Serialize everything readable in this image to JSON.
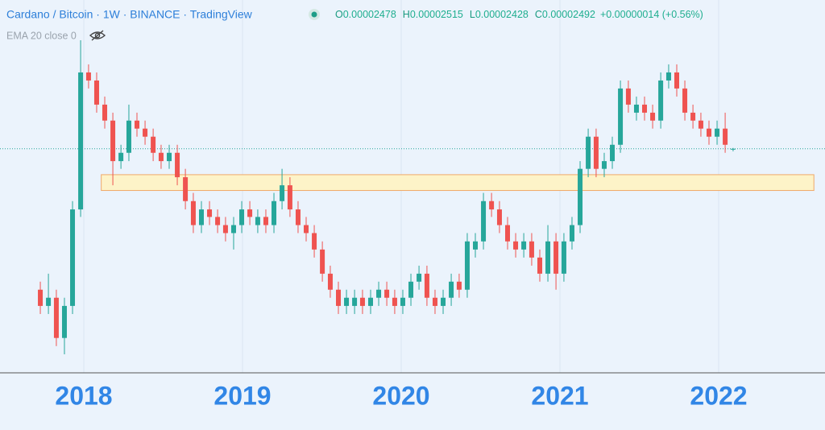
{
  "chart_data": {
    "type": "candlestick",
    "title": "Cardano / Bitcoin · 1W · BINANCE · TradingView",
    "ohlc": [
      {
        "key": "O",
        "value": 2.478e-05
      },
      {
        "key": "H",
        "value": 2.515e-05
      },
      {
        "key": "L",
        "value": 2.428e-05
      },
      {
        "key": "C",
        "value": 2.492e-05
      }
    ],
    "change": "+0.00000014 (+0.56%)",
    "indicator": "EMA 20 close 0",
    "up_color": "#26a69a",
    "down_color": "#ef5350",
    "log_scale": true,
    "grid": "x",
    "xlim": [
      2017.472,
      2022.67
    ],
    "xticks": [
      2018,
      2019,
      2020,
      2021,
      2022
    ],
    "ylim": [
      2.38e-06,
      0.0001186
    ],
    "zone": {
      "x": [
        2018.11,
        2022.6
      ],
      "y": [
        1.9e-05,
        1.61e-05
      ]
    },
    "x": [
      2017.726,
      2017.777,
      2017.827,
      2017.878,
      2017.929,
      2017.98,
      2018.03,
      2018.081,
      2018.132,
      2018.183,
      2018.234,
      2018.284,
      2018.335,
      2018.386,
      2018.437,
      2018.487,
      2018.538,
      2018.589,
      2018.64,
      2018.69,
      2018.741,
      2018.792,
      2018.843,
      2018.893,
      2018.944,
      2018.995,
      2019.046,
      2019.096,
      2019.147,
      2019.198,
      2019.249,
      2019.299,
      2019.35,
      2019.401,
      2019.452,
      2019.503,
      2019.553,
      2019.604,
      2019.655,
      2019.706,
      2019.756,
      2019.807,
      2019.858,
      2019.909,
      2019.959,
      2020.01,
      2020.061,
      2020.112,
      2020.162,
      2020.213,
      2020.264,
      2020.315,
      2020.365,
      2020.416,
      2020.467,
      2020.518,
      2020.569,
      2020.619,
      2020.67,
      2020.721,
      2020.772,
      2020.822,
      2020.873,
      2020.924,
      2020.975,
      2021.025,
      2021.076,
      2021.127,
      2021.178,
      2021.228,
      2021.279,
      2021.33,
      2021.381,
      2021.431,
      2021.482,
      2021.533,
      2021.584,
      2021.635,
      2021.685,
      2021.736,
      2021.787,
      2021.838,
      2021.888,
      2021.939,
      2021.99,
      2022.041,
      2022.091
    ],
    "open": [
      5.69e-06,
      4.8e-06,
      5.23e-06,
      3.43e-06,
      4.8e-06,
      1.32e-05,
      5.55e-05,
      5.1e-05,
      3.96e-05,
      3.35e-05,
      2.19e-05,
      2.39e-05,
      3.35e-05,
      3.08e-05,
      2.83e-05,
      2.39e-05,
      2.19e-05,
      2.39e-05,
      1.85e-05,
      1.44e-05,
      1.12e-05,
      1.32e-05,
      1.22e-05,
      1.12e-05,
      1.03e-05,
      1.12e-05,
      1.32e-05,
      1.12e-05,
      1.22e-05,
      1.12e-05,
      1.44e-05,
      1.7e-05,
      1.32e-05,
      1.12e-05,
      1.03e-05,
      8.67e-06,
      6.73e-06,
      5.69e-06,
      4.8e-06,
      4.8e-06,
      5.23e-06,
      4.8e-06,
      5.23e-06,
      5.69e-06,
      5.23e-06,
      4.8e-06,
      5.23e-06,
      6.19e-06,
      6.73e-06,
      5.23e-06,
      4.8e-06,
      5.23e-06,
      6.19e-06,
      5.69e-06,
      8.67e-06,
      9.44e-06,
      1.44e-05,
      1.32e-05,
      1.12e-05,
      9.44e-06,
      8.67e-06,
      9.44e-06,
      7.97e-06,
      6.73e-06,
      9.44e-06,
      6.73e-06,
      9.44e-06,
      1.12e-05,
      2.02e-05,
      2.83e-05,
      2.02e-05,
      2.19e-05,
      2.6e-05,
      4.69e-05,
      3.64e-05,
      3.96e-05,
      3.64e-05,
      3.35e-05,
      5.1e-05,
      5.55e-05,
      4.69e-05,
      3.64e-05,
      3.35e-05,
      3.08e-05,
      2.83e-05,
      3.08e-05,
      2.478e-05
    ],
    "high": [
      6.19e-06,
      6.73e-06,
      5.69e-06,
      5.23e-06,
      1.44e-05,
      7.78e-05,
      6.04e-05,
      5.55e-05,
      4.31e-05,
      3.64e-05,
      2.6e-05,
      3.96e-05,
      3.64e-05,
      3.35e-05,
      3.08e-05,
      2.6e-05,
      2.6e-05,
      2.6e-05,
      2.02e-05,
      1.57e-05,
      1.44e-05,
      1.44e-05,
      1.32e-05,
      1.22e-05,
      1.22e-05,
      1.44e-05,
      1.44e-05,
      1.32e-05,
      1.32e-05,
      1.57e-05,
      2.02e-05,
      1.85e-05,
      1.44e-05,
      1.22e-05,
      1.12e-05,
      9.44e-06,
      7.32e-06,
      6.19e-06,
      5.69e-06,
      5.69e-06,
      5.69e-06,
      5.69e-06,
      6.19e-06,
      6.19e-06,
      5.69e-06,
      5.69e-06,
      6.73e-06,
      7.32e-06,
      7.32e-06,
      5.69e-06,
      5.69e-06,
      6.73e-06,
      6.73e-06,
      1.03e-05,
      1.03e-05,
      1.57e-05,
      1.57e-05,
      1.44e-05,
      1.22e-05,
      1.03e-05,
      1.03e-05,
      1.03e-05,
      8.67e-06,
      1.12e-05,
      1.03e-05,
      1.03e-05,
      1.22e-05,
      2.19e-05,
      3.08e-05,
      3.08e-05,
      2.39e-05,
      2.83e-05,
      5.1e-05,
      5.1e-05,
      4.31e-05,
      4.31e-05,
      3.96e-05,
      5.55e-05,
      6.04e-05,
      6.04e-05,
      5.1e-05,
      3.96e-05,
      3.64e-05,
      3.35e-05,
      3.35e-05,
      3.64e-05,
      2.515e-05
    ],
    "low": [
      4.41e-06,
      4.41e-06,
      3.15e-06,
      2.89e-06,
      4.41e-06,
      1.22e-05,
      4.69e-05,
      3.64e-05,
      3.08e-05,
      1.7e-05,
      2.02e-05,
      2.19e-05,
      2.83e-05,
      2.6e-05,
      2.19e-05,
      2.02e-05,
      2.02e-05,
      1.7e-05,
      1.32e-05,
      1.03e-05,
      1.03e-05,
      1.12e-05,
      1.03e-05,
      9.44e-06,
      8.67e-06,
      1.03e-05,
      1.12e-05,
      1.03e-05,
      1.03e-05,
      1.03e-05,
      1.32e-05,
      1.22e-05,
      1.03e-05,
      9.44e-06,
      7.97e-06,
      6.19e-06,
      5.23e-06,
      4.41e-06,
      4.41e-06,
      4.41e-06,
      4.41e-06,
      4.41e-06,
      4.8e-06,
      4.8e-06,
      4.41e-06,
      4.41e-06,
      4.8e-06,
      5.69e-06,
      4.8e-06,
      4.41e-06,
      4.41e-06,
      4.8e-06,
      5.23e-06,
      5.23e-06,
      7.97e-06,
      8.67e-06,
      1.22e-05,
      1.03e-05,
      8.67e-06,
      7.97e-06,
      7.97e-06,
      7.32e-06,
      6.19e-06,
      6.19e-06,
      5.69e-06,
      6.19e-06,
      8.67e-06,
      1.03e-05,
      1.85e-05,
      1.85e-05,
      1.85e-05,
      2.02e-05,
      2.39e-05,
      3.64e-05,
      3.35e-05,
      3.35e-05,
      3.08e-05,
      3.08e-05,
      4.69e-05,
      4.31e-05,
      3.35e-05,
      3.08e-05,
      2.83e-05,
      2.6e-05,
      2.6e-05,
      2.39e-05,
      2.428e-05
    ],
    "close": [
      4.8e-06,
      5.23e-06,
      3.43e-06,
      4.8e-06,
      1.32e-05,
      5.55e-05,
      5.1e-05,
      3.96e-05,
      3.35e-05,
      2.19e-05,
      2.39e-05,
      3.35e-05,
      3.08e-05,
      2.83e-05,
      2.39e-05,
      2.19e-05,
      2.39e-05,
      1.85e-05,
      1.44e-05,
      1.12e-05,
      1.32e-05,
      1.22e-05,
      1.12e-05,
      1.03e-05,
      1.12e-05,
      1.32e-05,
      1.22e-05,
      1.22e-05,
      1.12e-05,
      1.44e-05,
      1.7e-05,
      1.32e-05,
      1.12e-05,
      1.03e-05,
      8.67e-06,
      6.73e-06,
      5.69e-06,
      4.8e-06,
      5.23e-06,
      5.23e-06,
      4.8e-06,
      5.23e-06,
      5.69e-06,
      5.23e-06,
      4.8e-06,
      5.23e-06,
      6.19e-06,
      6.73e-06,
      5.23e-06,
      4.8e-06,
      5.23e-06,
      6.19e-06,
      5.69e-06,
      9.44e-06,
      9.44e-06,
      1.44e-05,
      1.32e-05,
      1.12e-05,
      9.44e-06,
      8.67e-06,
      9.44e-06,
      7.97e-06,
      6.73e-06,
      9.44e-06,
      6.73e-06,
      9.44e-06,
      1.12e-05,
      2.02e-05,
      2.83e-05,
      2.02e-05,
      2.19e-05,
      2.6e-05,
      4.69e-05,
      3.96e-05,
      3.96e-05,
      3.64e-05,
      3.35e-05,
      5.1e-05,
      5.55e-05,
      4.69e-05,
      3.64e-05,
      3.35e-05,
      3.08e-05,
      2.83e-05,
      3.08e-05,
      2.6e-05,
      2.492e-05
    ]
  }
}
